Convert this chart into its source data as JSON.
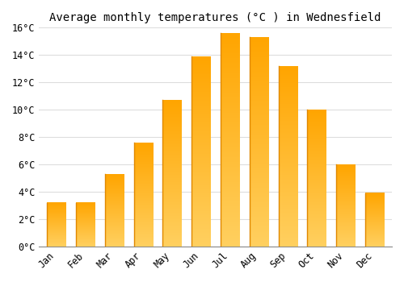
{
  "title": "Average monthly temperatures (°C ) in Wednesfield",
  "months": [
    "Jan",
    "Feb",
    "Mar",
    "Apr",
    "May",
    "Jun",
    "Jul",
    "Aug",
    "Sep",
    "Oct",
    "Nov",
    "Dec"
  ],
  "values": [
    3.2,
    3.2,
    5.3,
    7.6,
    10.7,
    13.9,
    15.6,
    15.3,
    13.2,
    10.0,
    6.0,
    3.9
  ],
  "bar_color_main": "#FFA500",
  "bar_color_light": "#FFD060",
  "bar_color_edge": "#E08800",
  "ylim": [
    0,
    16
  ],
  "yticks": [
    0,
    2,
    4,
    6,
    8,
    10,
    12,
    14,
    16
  ],
  "ytick_labels": [
    "0°C",
    "2°C",
    "4°C",
    "6°C",
    "8°C",
    "10°C",
    "12°C",
    "14°C",
    "16°C"
  ],
  "background_color": "#FFFFFF",
  "plot_bg_color": "#FFFFFF",
  "grid_color": "#DDDDDD",
  "title_fontsize": 10,
  "tick_fontsize": 8.5,
  "font_family": "monospace"
}
